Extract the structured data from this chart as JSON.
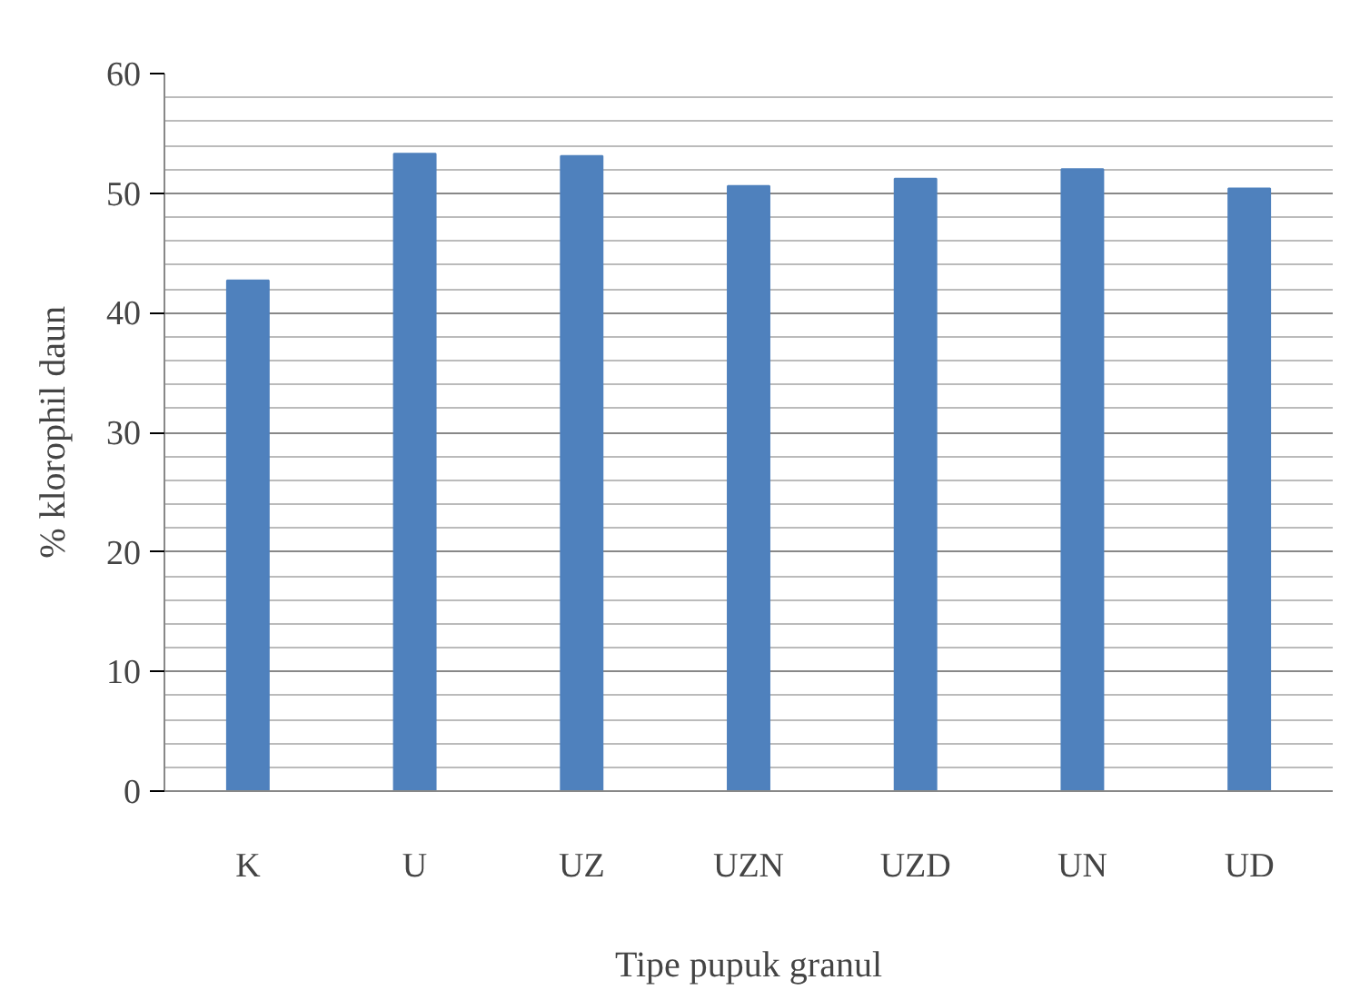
{
  "chart_data": {
    "type": "bar",
    "xlabel": "Tipe pupuk granul",
    "ylabel": "% klorophil daun",
    "categories": [
      "K",
      "U",
      "UZ",
      "UZN",
      "UZD",
      "UN",
      "UD"
    ],
    "values": [
      42.7,
      53.3,
      53.1,
      50.6,
      51.2,
      52.0,
      50.4
    ],
    "color": "#4f81bd",
    "ylim": [
      0,
      60
    ],
    "yticks": [
      0,
      10,
      20,
      30,
      40,
      50,
      60
    ],
    "grid": "y"
  }
}
